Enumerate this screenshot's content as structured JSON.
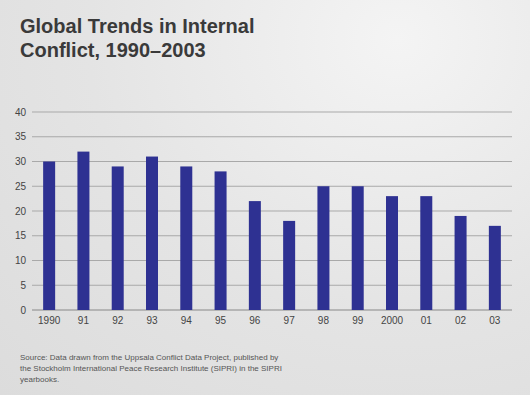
{
  "chart_data": {
    "type": "bar",
    "title": "Global Trends in Internal Conflict, 1990–2003",
    "annotations": [
      "Source: Data drawn from the Uppsala Conflict Data Project, published by the Stockholm International Peace Research Institute (SIPRI) in the SIPRI yearbooks."
    ],
    "categories": [
      "1990",
      "91",
      "92",
      "93",
      "94",
      "95",
      "96",
      "97",
      "98",
      "99",
      "2000",
      "01",
      "02",
      "03"
    ],
    "values": [
      30,
      32,
      29,
      31,
      29,
      28,
      22,
      18,
      25,
      25,
      23,
      23,
      19,
      17
    ],
    "color": "#2e3192",
    "ylim": [
      0,
      40
    ],
    "yticks": [
      0,
      5,
      10,
      15,
      20,
      25,
      30,
      35,
      40
    ],
    "grid": true
  }
}
